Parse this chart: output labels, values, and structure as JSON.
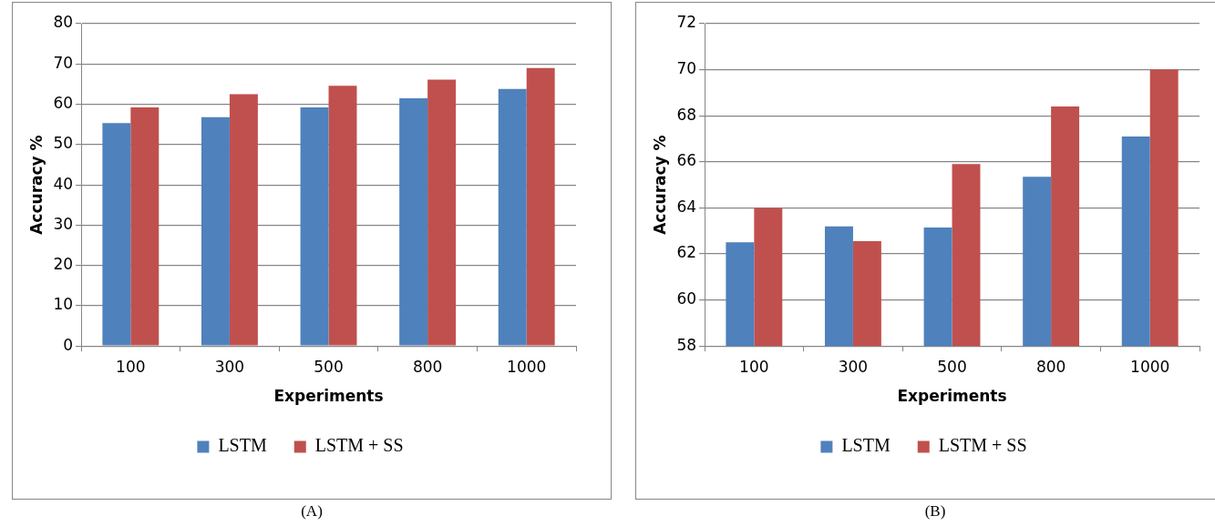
{
  "chart_data": [
    {
      "type": "bar",
      "xlabel": "Experiments",
      "ylabel": "Accuracy %",
      "categories": [
        "100",
        "300",
        "500",
        "800",
        "1000"
      ],
      "series": [
        {
          "name": "LSTM",
          "color": "#4f81bd",
          "values": [
            55.3,
            56.8,
            59.2,
            61.5,
            63.8
          ]
        },
        {
          "name": "LSTM + SS",
          "color": "#c0504d",
          "values": [
            59.2,
            62.5,
            64.6,
            66.1,
            69.0
          ]
        }
      ],
      "ylim": [
        0,
        80
      ],
      "yticks": [
        0,
        10,
        20,
        30,
        40,
        50,
        60,
        70,
        80
      ],
      "grid": "y",
      "legend": "bottom",
      "annotations": [
        "(A)"
      ]
    },
    {
      "type": "bar",
      "xlabel": "Experiments",
      "ylabel": "Accuracy %",
      "categories": [
        "100",
        "300",
        "500",
        "800",
        "1000"
      ],
      "series": [
        {
          "name": "LSTM",
          "color": "#4f81bd",
          "values": [
            62.5,
            63.2,
            63.15,
            65.35,
            67.1
          ]
        },
        {
          "name": "LSTM + SS",
          "color": "#c0504d",
          "values": [
            64.0,
            62.55,
            65.9,
            68.4,
            70.0
          ]
        }
      ],
      "ylim": [
        58,
        72
      ],
      "yticks": [
        58,
        60,
        62,
        64,
        66,
        68,
        70,
        72
      ],
      "grid": "y",
      "legend": "bottom",
      "annotations": [
        "(B)"
      ]
    }
  ]
}
